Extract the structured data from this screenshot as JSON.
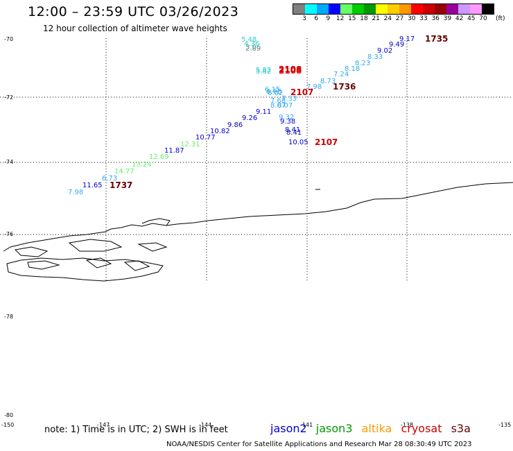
{
  "header": {
    "title": "12:00 – 23:59 UTC 03/26/2023",
    "subtitle": "12 hour collection of altimeter wave heights"
  },
  "colorbar": {
    "colors": [
      "#808080",
      "#00ffff",
      "#00aaff",
      "#0000ff",
      "#66ff66",
      "#00cc00",
      "#009900",
      "#ffff00",
      "#ffcc00",
      "#ff9900",
      "#ff0000",
      "#cc0000",
      "#990000",
      "#990099",
      "#cc99ff",
      "#ff99ff",
      "#000000"
    ],
    "labels": [
      "3",
      "6",
      "9",
      "12",
      "15",
      "18",
      "21",
      "24",
      "27",
      "30",
      "33",
      "36",
      "39",
      "42",
      "45",
      "70"
    ],
    "unit": "(ft)"
  },
  "axes": {
    "lat_labels": [
      "-70",
      "-72",
      "-74",
      "-76",
      "-78",
      "-80"
    ],
    "lon_labels": [
      "-150",
      "-147",
      "-144",
      "-141",
      "-138",
      "-135"
    ]
  },
  "satellites": {
    "jason2": "#0000cc",
    "jason3": "#009900",
    "altika": "#ff9900",
    "cryosat": "#cc0000",
    "s3a": "#660000"
  },
  "observations": [
    {
      "v": "5.48",
      "c": "#33cccc"
    },
    {
      "v": "4.36",
      "c": "#33cccc"
    },
    {
      "v": "3.06",
      "c": "#33cccc"
    },
    {
      "v": "2.89",
      "c": "#888888"
    },
    {
      "v": "5.82",
      "c": "#33cccc"
    },
    {
      "v": "5.82",
      "c": "#33cccc"
    },
    {
      "v": "2108",
      "c": "#ff0000"
    },
    {
      "v": "2108",
      "c": "#cc0000"
    },
    {
      "v": "6.15",
      "c": "#33aaee"
    },
    {
      "v": "6.68",
      "c": "#33aaee"
    },
    {
      "v": "6.02",
      "c": "#33aaee"
    },
    {
      "v": "2107",
      "c": "#cc0000"
    },
    {
      "v": "7.33",
      "c": "#33aaee"
    },
    {
      "v": "7.68",
      "c": "#33aaee"
    },
    {
      "v": "8.07",
      "c": "#33aaee"
    },
    {
      "v": "8.07",
      "c": "#33aaee"
    },
    {
      "v": "9.11",
      "c": "#0000cc"
    },
    {
      "v": "9.26",
      "c": "#0000cc"
    },
    {
      "v": "9.86",
      "c": "#0000cc"
    },
    {
      "v": "10.82",
      "c": "#0000cc"
    },
    {
      "v": "10.77",
      "c": "#0000cc"
    },
    {
      "v": "11.87",
      "c": "#0000cc"
    },
    {
      "v": "12.31",
      "c": "#66ee66"
    },
    {
      "v": "12.69",
      "c": "#66ee66"
    },
    {
      "v": "13.24",
      "c": "#66ee66"
    },
    {
      "v": "14.77",
      "c": "#66ee66"
    },
    {
      "v": "6.73",
      "c": "#33aaee"
    },
    {
      "v": "11.65",
      "c": "#0000cc"
    },
    {
      "v": "7.98",
      "c": "#33aaee"
    },
    {
      "v": "1737",
      "c": "#660000"
    },
    {
      "v": "9.32",
      "c": "#33aaee"
    },
    {
      "v": "9.38",
      "c": "#0000cc"
    },
    {
      "v": "8.41",
      "c": "#0000cc"
    },
    {
      "v": "8.41",
      "c": "#0000cc"
    },
    {
      "v": "10.05",
      "c": "#0000cc"
    },
    {
      "v": "2107",
      "c": "#cc0000"
    },
    {
      "v": "7.98",
      "c": "#33aaee"
    },
    {
      "v": "8.73",
      "c": "#33aaee"
    },
    {
      "v": "1736",
      "c": "#660000"
    },
    {
      "v": "7.24",
      "c": "#33aaee"
    },
    {
      "v": "8.18",
      "c": "#33aaee"
    },
    {
      "v": "8.23",
      "c": "#33aaee"
    },
    {
      "v": "8.33",
      "c": "#33aaee"
    },
    {
      "v": "9.02",
      "c": "#0000cc"
    },
    {
      "v": "9.49",
      "c": "#0000cc"
    },
    {
      "v": "9.17",
      "c": "#0000cc"
    },
    {
      "v": "1735",
      "c": "#660000"
    }
  ],
  "footer": {
    "note": "note: 1) Time is in UTC; 2) SWH is in feet",
    "legend": [
      "jason2",
      "jason3",
      "altika",
      "cryosat",
      "s3a"
    ],
    "credit": "NOAA/NESDIS Center for Satellite Applications and Research    Mar 28 08:30:49 UTC 2023"
  }
}
